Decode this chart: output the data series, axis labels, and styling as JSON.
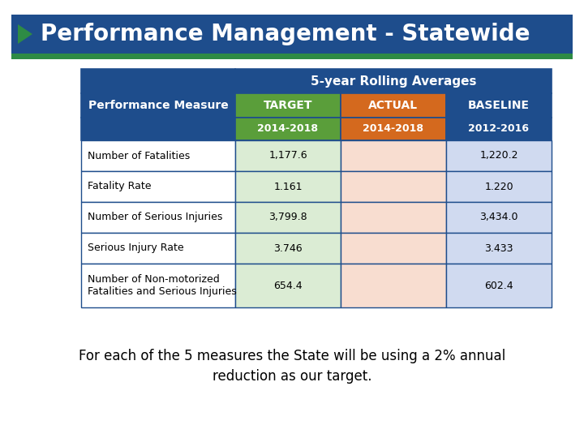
{
  "title": "Performance Management - Statewide",
  "title_bg": "#1e4d8c",
  "title_text_color": "#ffffff",
  "accent_bar_color": "#2e8b45",
  "header_bg": "#1e4d8c",
  "rolling_avg_label": "5-year Rolling Averages",
  "col_headers": [
    "TARGET",
    "ACTUAL",
    "BASELINE"
  ],
  "col_header_colors": [
    "#5a9e3a",
    "#d4691e",
    "#1e4d8c"
  ],
  "col_sub_headers": [
    "2014-2018",
    "2014-2018",
    "2012-2016"
  ],
  "col_sub_header_colors": [
    "#5a9e3a",
    "#d4691e",
    "#1e4d8c"
  ],
  "row_label": "Performance Measure",
  "rows": [
    "Number of Fatalities",
    "Fatality Rate",
    "Number of Serious Injuries",
    "Serious Injury Rate",
    "Number of Non-motorized\nFatalities and Serious Injuries"
  ],
  "target_values": [
    "1,177.6",
    "1.161",
    "3,799.8",
    "3.746",
    "654.4"
  ],
  "actual_values": [
    "",
    "",
    "",
    "",
    ""
  ],
  "baseline_values": [
    "1,220.2",
    "1.220",
    "3,434.0",
    "3.433",
    "602.4"
  ],
  "target_cell_bg": [
    "#dbecd4",
    "#dbecd4",
    "#dbecd4",
    "#dbecd4",
    "#dbecd4"
  ],
  "actual_cell_bg": [
    "#f8ddd0",
    "#f8ddd0",
    "#f8ddd0",
    "#f8ddd0",
    "#f8ddd0"
  ],
  "baseline_cell_bg": [
    "#d0daf0",
    "#d0daf0",
    "#d0daf0",
    "#d0daf0",
    "#d0daf0"
  ],
  "footer_text": "For each of the 5 measures the State will be using a 2% annual\nreduction as our target.",
  "table_border_color": "#1e4d8c",
  "bg_color": "#ffffff"
}
